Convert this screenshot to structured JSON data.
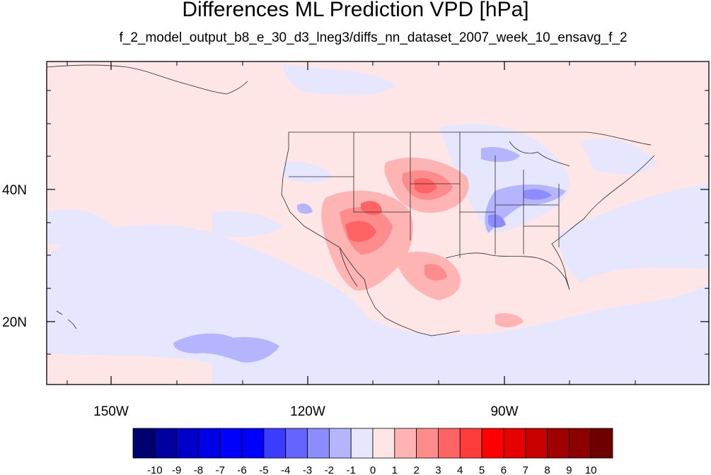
{
  "title": "Differences ML Prediction VPD [hPa]",
  "subtitle": "f_2_model_output_b8_e_30_d3_lneg3/diffs_nn_dataset_2007_week_10_ensavg_f_2",
  "map": {
    "lon_range": [
      -160,
      -58
    ],
    "lat_range": [
      10,
      59
    ],
    "lon_ticks": [
      {
        "value": -150,
        "label": "150W"
      },
      {
        "value": -120,
        "label": "120W"
      },
      {
        "value": -90,
        "label": "90W"
      }
    ],
    "lat_ticks": [
      {
        "value": 40,
        "label": "40N"
      },
      {
        "value": 20,
        "label": "20N"
      }
    ],
    "projection": "cylindrical equidistant",
    "background_value": "0 to 1",
    "ocean_pattern": "slightly negative (0 to -1) over subtropical Pacific and Gulf; slightly positive elsewhere",
    "maxima": [
      "Colorado / Nebraska border (~4 to 5 hPa)",
      "Arizona / Utah (~3 to 5 hPa)",
      "southern Texas (~2 to 3 hPa)"
    ],
    "minima": [
      "Ohio / Tennessee valley (~-2 to -3 hPa)",
      "Great Lakes (~-1 to -2 hPa)",
      "eastern Pacific near 15N (~-1 to -2 hPa)"
    ]
  },
  "colorbar": {
    "levels": [
      -10,
      -9,
      -8,
      -7,
      -6,
      -5,
      -4,
      -3,
      -2,
      -1,
      0,
      1,
      2,
      3,
      4,
      5,
      6,
      7,
      8,
      9,
      10
    ],
    "labels": [
      "-10",
      "-9",
      "-8",
      "-7",
      "-6",
      "-5",
      "-4",
      "-3",
      "-2",
      "-1",
      "0",
      "1",
      "2",
      "3",
      "4",
      "5",
      "6",
      "7",
      "8",
      "9",
      "10"
    ],
    "colors": [
      "#00006e",
      "#0000a0",
      "#0000c8",
      "#0000e6",
      "#0000ff",
      "#0000ff",
      "#3c3cff",
      "#6464ff",
      "#8c8cff",
      "#b4b4ff",
      "#e6e6ff",
      "#ffe6e6",
      "#ffb4b4",
      "#ff8c8c",
      "#ff6464",
      "#ff3c3c",
      "#ff0000",
      "#e60000",
      "#c80000",
      "#a00000",
      "#8c0000",
      "#6e0000"
    ]
  }
}
